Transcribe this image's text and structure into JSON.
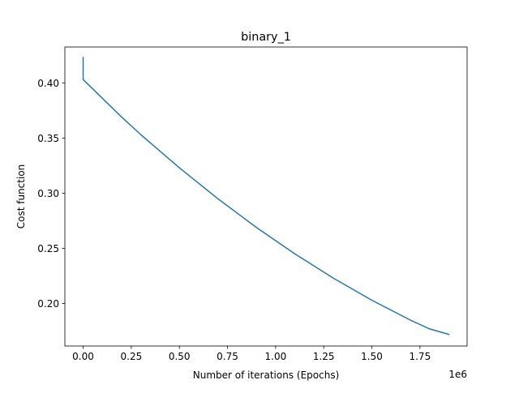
{
  "chart_data": {
    "type": "line",
    "title": "binary_1",
    "xlabel": "Number of iterations (Epochs)",
    "ylabel": "Cost function",
    "x_offset_label": "1e6",
    "xlim": [
      -0.095,
      1.995
    ],
    "ylim": [
      0.1615,
      0.4325
    ],
    "x_scale": 1000000,
    "xticks": [
      0.0,
      0.25,
      0.5,
      0.75,
      1.0,
      1.25,
      1.5,
      1.75
    ],
    "xtick_labels": [
      "0.00",
      "0.25",
      "0.50",
      "0.75",
      "1.00",
      "1.25",
      "1.50",
      "1.75"
    ],
    "yticks": [
      0.2,
      0.25,
      0.3,
      0.35,
      0.4
    ],
    "ytick_labels": [
      "0.20",
      "0.25",
      "0.30",
      "0.35",
      "0.40"
    ],
    "grid": false,
    "series": [
      {
        "color": "#1f77b4",
        "x": [
          0.0,
          0.0,
          0.1,
          0.2,
          0.3,
          0.4,
          0.5,
          0.6,
          0.7,
          0.8,
          0.9,
          1.0,
          1.1,
          1.2,
          1.3,
          1.4,
          1.5,
          1.6,
          1.7,
          1.8,
          1.9
        ],
        "y": [
          0.423,
          0.403,
          0.386,
          0.369,
          0.353,
          0.338,
          0.323,
          0.309,
          0.295,
          0.282,
          0.269,
          0.257,
          0.245,
          0.234,
          0.223,
          0.213,
          0.203,
          0.194,
          0.185,
          0.177,
          0.172
        ]
      }
    ]
  }
}
